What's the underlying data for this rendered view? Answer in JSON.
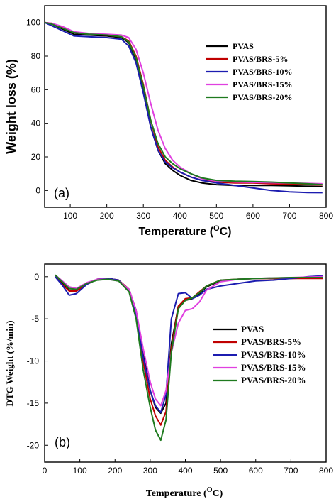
{
  "chart_data": [
    {
      "type": "line",
      "panel_label": "(a)",
      "xlabel": "Temperature (",
      "xlabel_sup": "O",
      "xlabel_tail": "C)",
      "ylabel": "Weight loss (%)",
      "xlim": [
        30,
        800
      ],
      "ylim": [
        -10,
        110
      ],
      "xticks": [
        100,
        200,
        300,
        400,
        500,
        600,
        700,
        800
      ],
      "yticks": [
        0,
        20,
        40,
        60,
        80,
        100
      ],
      "legend_position": "right",
      "series": [
        {
          "name": "PVAS",
          "color": "#000000",
          "points": [
            [
              30,
              100
            ],
            [
              50,
              99
            ],
            [
              80,
              96
            ],
            [
              110,
              93
            ],
            [
              150,
              92.5
            ],
            [
              200,
              92
            ],
            [
              240,
              91
            ],
            [
              260,
              88
            ],
            [
              280,
              78
            ],
            [
              300,
              60
            ],
            [
              320,
              38
            ],
            [
              340,
              24
            ],
            [
              360,
              16
            ],
            [
              380,
              12
            ],
            [
              400,
              9
            ],
            [
              430,
              6
            ],
            [
              460,
              4.5
            ],
            [
              500,
              3.5
            ],
            [
              550,
              3
            ],
            [
              600,
              3
            ],
            [
              650,
              3
            ],
            [
              700,
              2.8
            ],
            [
              750,
              2.5
            ],
            [
              790,
              2.3
            ]
          ]
        },
        {
          "name": "PVAS/BRS-5%",
          "color": "#c00000",
          "points": [
            [
              30,
              100
            ],
            [
              50,
              99.5
            ],
            [
              80,
              97
            ],
            [
              110,
              94
            ],
            [
              150,
              93
            ],
            [
              200,
              92.5
            ],
            [
              240,
              91.5
            ],
            [
              260,
              89
            ],
            [
              280,
              80
            ],
            [
              300,
              63
            ],
            [
              320,
              42
            ],
            [
              340,
              26
            ],
            [
              360,
              18
            ],
            [
              380,
              14
            ],
            [
              400,
              11
            ],
            [
              430,
              8
            ],
            [
              460,
              6
            ],
            [
              500,
              5
            ],
            [
              550,
              4.5
            ],
            [
              600,
              4.5
            ],
            [
              650,
              4
            ],
            [
              700,
              3.8
            ],
            [
              750,
              3.5
            ],
            [
              790,
              3.3
            ]
          ]
        },
        {
          "name": "PVAS/BRS-10%",
          "color": "#1c1cb0",
          "points": [
            [
              30,
              100
            ],
            [
              50,
              98
            ],
            [
              80,
              95
            ],
            [
              110,
              92
            ],
            [
              150,
              91.5
            ],
            [
              200,
              91
            ],
            [
              240,
              90
            ],
            [
              260,
              86
            ],
            [
              280,
              76
            ],
            [
              300,
              58
            ],
            [
              320,
              38
            ],
            [
              340,
              24
            ],
            [
              360,
              17
            ],
            [
              380,
              13.5
            ],
            [
              400,
              11
            ],
            [
              430,
              8
            ],
            [
              460,
              6
            ],
            [
              500,
              4.5
            ],
            [
              550,
              3
            ],
            [
              600,
              1.5
            ],
            [
              650,
              0
            ],
            [
              700,
              -0.8
            ],
            [
              750,
              -1.2
            ],
            [
              790,
              -1.3
            ]
          ]
        },
        {
          "name": "PVAS/BRS-15%",
          "color": "#e040e0",
          "points": [
            [
              30,
              100
            ],
            [
              50,
              99.5
            ],
            [
              80,
              97.5
            ],
            [
              110,
              94.5
            ],
            [
              150,
              93.5
            ],
            [
              200,
              93
            ],
            [
              240,
              92.5
            ],
            [
              260,
              91
            ],
            [
              280,
              84
            ],
            [
              300,
              70
            ],
            [
              320,
              52
            ],
            [
              340,
              36
            ],
            [
              360,
              25
            ],
            [
              380,
              18
            ],
            [
              400,
              14
            ],
            [
              430,
              10
            ],
            [
              460,
              7
            ],
            [
              500,
              5.5
            ],
            [
              550,
              5
            ],
            [
              600,
              4.8
            ],
            [
              650,
              4.6
            ],
            [
              700,
              4.4
            ],
            [
              750,
              4.2
            ],
            [
              790,
              4
            ]
          ]
        },
        {
          "name": "PVAS/BRS-20%",
          "color": "#1e7a1e",
          "points": [
            [
              30,
              100
            ],
            [
              50,
              99
            ],
            [
              80,
              96.5
            ],
            [
              110,
              94
            ],
            [
              150,
              93
            ],
            [
              200,
              92.5
            ],
            [
              240,
              91.5
            ],
            [
              260,
              88.5
            ],
            [
              280,
              79
            ],
            [
              300,
              62
            ],
            [
              320,
              42
            ],
            [
              340,
              28
            ],
            [
              360,
              20
            ],
            [
              380,
              16
            ],
            [
              400,
              13
            ],
            [
              430,
              10
            ],
            [
              460,
              7.5
            ],
            [
              500,
              6
            ],
            [
              550,
              5.5
            ],
            [
              600,
              5.3
            ],
            [
              650,
              5
            ],
            [
              700,
              4.5
            ],
            [
              750,
              4
            ],
            [
              790,
              3.5
            ]
          ]
        }
      ]
    },
    {
      "type": "line",
      "panel_label": "(b)",
      "xlabel": "Temperature (",
      "xlabel_sup": "O",
      "xlabel_tail": "C)",
      "ylabel": "DTG Weight (%/min)",
      "xlim": [
        0,
        800
      ],
      "ylim": [
        -22,
        1.5
      ],
      "xticks": [
        0,
        100,
        200,
        300,
        400,
        500,
        600,
        700,
        800
      ],
      "yticks": [
        0,
        -5,
        -10,
        -15,
        -20
      ],
      "legend_position": "right",
      "series": [
        {
          "name": "PVAS",
          "color": "#000000",
          "points": [
            [
              30,
              0
            ],
            [
              50,
              -0.8
            ],
            [
              70,
              -1.6
            ],
            [
              90,
              -1.6
            ],
            [
              120,
              -0.8
            ],
            [
              150,
              -0.3
            ],
            [
              180,
              -0.2
            ],
            [
              210,
              -0.4
            ],
            [
              240,
              -1.5
            ],
            [
              260,
              -4
            ],
            [
              280,
              -9
            ],
            [
              300,
              -13.5
            ],
            [
              315,
              -15.5
            ],
            [
              330,
              -16.2
            ],
            [
              345,
              -15
            ],
            [
              360,
              -8
            ],
            [
              380,
              -3.5
            ],
            [
              400,
              -2.8
            ],
            [
              420,
              -2.6
            ],
            [
              440,
              -2
            ],
            [
              460,
              -1.2
            ],
            [
              500,
              -0.5
            ],
            [
              550,
              -0.3
            ],
            [
              600,
              -0.2
            ],
            [
              700,
              -0.2
            ],
            [
              790,
              -0.1
            ]
          ]
        },
        {
          "name": "PVAS/BRS-5%",
          "color": "#c00000",
          "points": [
            [
              30,
              0
            ],
            [
              50,
              -0.9
            ],
            [
              70,
              -1.7
            ],
            [
              90,
              -1.7
            ],
            [
              120,
              -0.9
            ],
            [
              150,
              -0.3
            ],
            [
              180,
              -0.2
            ],
            [
              210,
              -0.4
            ],
            [
              240,
              -1.5
            ],
            [
              260,
              -4.5
            ],
            [
              280,
              -10
            ],
            [
              300,
              -14.5
            ],
            [
              315,
              -16.5
            ],
            [
              330,
              -17.6
            ],
            [
              345,
              -16
            ],
            [
              360,
              -8.5
            ],
            [
              380,
              -3.5
            ],
            [
              400,
              -2.6
            ],
            [
              420,
              -2.5
            ],
            [
              440,
              -1.8
            ],
            [
              460,
              -1.1
            ],
            [
              500,
              -0.4
            ],
            [
              550,
              -0.3
            ],
            [
              600,
              -0.2
            ],
            [
              700,
              -0.2
            ],
            [
              790,
              -0.2
            ]
          ]
        },
        {
          "name": "PVAS/BRS-10%",
          "color": "#1c1cb0",
          "points": [
            [
              30,
              0
            ],
            [
              50,
              -1
            ],
            [
              70,
              -2.2
            ],
            [
              90,
              -2
            ],
            [
              120,
              -0.9
            ],
            [
              150,
              -0.3
            ],
            [
              180,
              -0.2
            ],
            [
              210,
              -0.4
            ],
            [
              240,
              -1.6
            ],
            [
              260,
              -4.5
            ],
            [
              280,
              -9.5
            ],
            [
              300,
              -13.5
            ],
            [
              315,
              -15.3
            ],
            [
              330,
              -16.1
            ],
            [
              345,
              -14
            ],
            [
              360,
              -5
            ],
            [
              380,
              -2
            ],
            [
              400,
              -1.9
            ],
            [
              420,
              -2.6
            ],
            [
              440,
              -2.2
            ],
            [
              460,
              -1.5
            ],
            [
              500,
              -1.1
            ],
            [
              550,
              -0.8
            ],
            [
              600,
              -0.5
            ],
            [
              650,
              -0.4
            ],
            [
              700,
              -0.2
            ],
            [
              750,
              0
            ],
            [
              790,
              0.1
            ]
          ]
        },
        {
          "name": "PVAS/BRS-15%",
          "color": "#e040e0",
          "points": [
            [
              30,
              0.2
            ],
            [
              50,
              -0.5
            ],
            [
              70,
              -1.2
            ],
            [
              90,
              -1.4
            ],
            [
              120,
              -0.7
            ],
            [
              150,
              -0.3
            ],
            [
              180,
              -0.3
            ],
            [
              210,
              -0.5
            ],
            [
              240,
              -1.5
            ],
            [
              260,
              -4
            ],
            [
              280,
              -8.5
            ],
            [
              300,
              -12.5
            ],
            [
              315,
              -14.5
            ],
            [
              330,
              -15.3
            ],
            [
              345,
              -13.5
            ],
            [
              360,
              -9
            ],
            [
              380,
              -5.5
            ],
            [
              400,
              -4
            ],
            [
              420,
              -3.8
            ],
            [
              440,
              -3
            ],
            [
              460,
              -1.6
            ],
            [
              500,
              -0.6
            ],
            [
              550,
              -0.3
            ],
            [
              600,
              -0.2
            ],
            [
              700,
              -0.1
            ],
            [
              790,
              0
            ]
          ]
        },
        {
          "name": "PVAS/BRS-20%",
          "color": "#1e7a1e",
          "points": [
            [
              30,
              0.2
            ],
            [
              50,
              -0.6
            ],
            [
              70,
              -1.4
            ],
            [
              90,
              -1.5
            ],
            [
              120,
              -0.8
            ],
            [
              150,
              -0.4
            ],
            [
              180,
              -0.3
            ],
            [
              210,
              -0.5
            ],
            [
              240,
              -1.8
            ],
            [
              260,
              -5
            ],
            [
              280,
              -11
            ],
            [
              300,
              -15.5
            ],
            [
              315,
              -18.2
            ],
            [
              330,
              -19.4
            ],
            [
              345,
              -17
            ],
            [
              360,
              -9
            ],
            [
              380,
              -3.8
            ],
            [
              400,
              -2.8
            ],
            [
              420,
              -2.5
            ],
            [
              440,
              -1.9
            ],
            [
              460,
              -1.1
            ],
            [
              500,
              -0.4
            ],
            [
              550,
              -0.3
            ],
            [
              600,
              -0.2
            ],
            [
              700,
              -0.1
            ],
            [
              790,
              -0.1
            ]
          ]
        }
      ]
    }
  ]
}
